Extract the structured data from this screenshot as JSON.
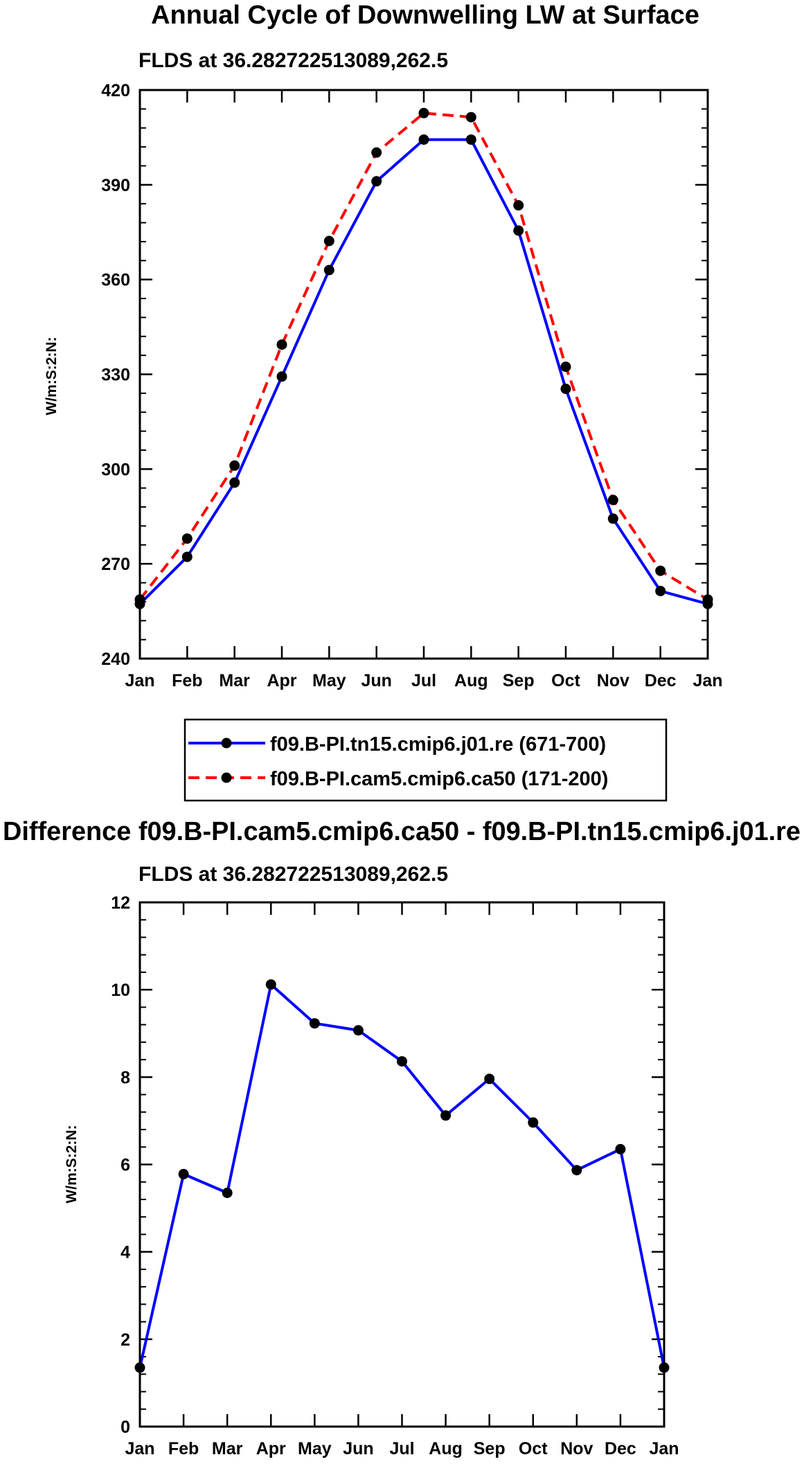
{
  "chart_data": [
    {
      "type": "line",
      "title": "Annual Cycle of Downwelling LW at Surface",
      "subtitle": "FLDS at 36.282722513089,262.5",
      "xlabel": "",
      "ylabel": "W/m:S:2:N:",
      "categories": [
        "Jan",
        "Feb",
        "Mar",
        "Apr",
        "May",
        "Jun",
        "Jul",
        "Aug",
        "Sep",
        "Oct",
        "Nov",
        "Dec",
        "Jan"
      ],
      "ylim": [
        240,
        420
      ],
      "yticks": [
        "240",
        "270",
        "300",
        "330",
        "360",
        "390",
        "420"
      ],
      "series": [
        {
          "name": "f09.B-PI.tn15.cmip6.j01.re (671-700)",
          "color": "#0000ff",
          "style": "solid",
          "values": [
            257.3,
            272.2,
            295.7,
            329.3,
            363.0,
            391.1,
            404.3,
            404.3,
            375.5,
            325.4,
            284.3,
            261.4,
            257.3
          ]
        },
        {
          "name": "f09.B-PI.cam5.cmip6.ca50 (171-200)",
          "color": "#ff0000",
          "style": "dashed",
          "values": [
            258.7,
            278.0,
            301.1,
            339.4,
            372.2,
            400.2,
            412.7,
            411.4,
            383.5,
            332.4,
            290.2,
            267.8,
            258.7
          ]
        }
      ],
      "legend": "below"
    },
    {
      "type": "line",
      "title": "Difference f09.B-PI.cam5.cmip6.ca50 - f09.B-PI.tn15.cmip6.j01.re",
      "subtitle": "FLDS at 36.282722513089,262.5",
      "xlabel": "",
      "ylabel": "W/m:S:2:N:",
      "categories": [
        "Jan",
        "Feb",
        "Mar",
        "Apr",
        "May",
        "Jun",
        "Jul",
        "Aug",
        "Sep",
        "Oct",
        "Nov",
        "Dec",
        "Jan"
      ],
      "ylim": [
        0,
        12
      ],
      "yticks": [
        "0",
        "2",
        "4",
        "6",
        "8",
        "10",
        "12"
      ],
      "series": [
        {
          "name": "Difference",
          "color": "#0000ff",
          "style": "solid",
          "values": [
            1.35,
            5.78,
            5.35,
            10.12,
            9.23,
            9.07,
            8.36,
            7.12,
            7.96,
            6.96,
            5.87,
            6.35,
            1.35
          ]
        }
      ]
    }
  ]
}
